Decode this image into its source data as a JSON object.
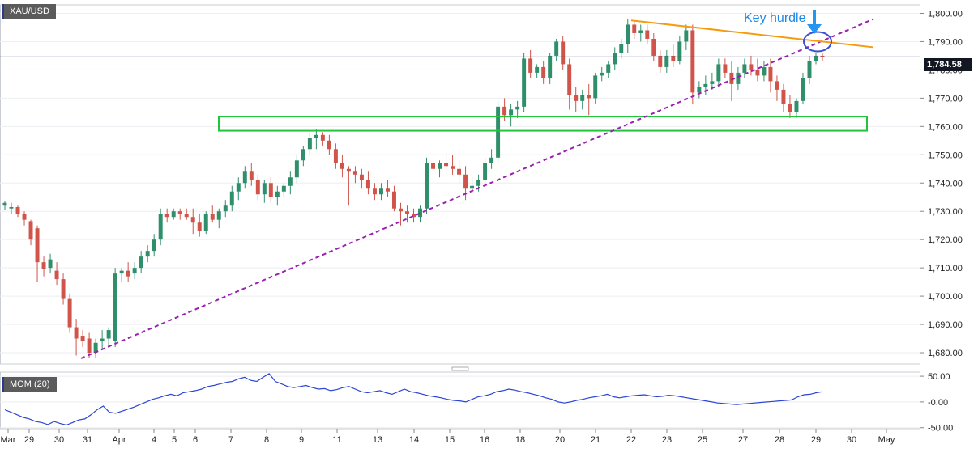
{
  "chart_data": [
    {
      "type": "candlestick",
      "symbol": "XAU/USD",
      "current_price": "1,784.58",
      "current_value": 1784.58,
      "ylim": [
        1676,
        1803
      ],
      "y_ticks": [
        1680,
        1690,
        1700,
        1710,
        1720,
        1730,
        1740,
        1750,
        1760,
        1770,
        1780,
        1790,
        1800
      ],
      "y_tick_labels": [
        "1,680.00",
        "1,690.00",
        "1,700.00",
        "1,710.00",
        "1,720.00",
        "1,730.00",
        "1,740.00",
        "1,750.00",
        "1,760.00",
        "1,770.00",
        "1,780.00",
        "1,790.00",
        "1,800.00"
      ],
      "x_tick_labels": [
        "Mar",
        "29",
        "30",
        "31",
        "Apr",
        "4",
        "5",
        "6",
        "7",
        "8",
        "9",
        "11",
        "13",
        "14",
        "15",
        "16",
        "18",
        "20",
        "21",
        "22",
        "23",
        "25",
        "27",
        "28",
        "29",
        "30",
        "May"
      ],
      "annotations": {
        "label": "Key  hurdle",
        "support_zone": [
          1758.5,
          1763.5
        ],
        "rising_trendline": [
          [
            0,
            1678
          ],
          [
            1.0,
            1798
          ]
        ],
        "falling_trendline": [
          [
            0,
            1797.5
          ],
          [
            1.0,
            1788
          ]
        ]
      },
      "ohlc": [
        [
          1732,
          1733.5,
          1730.5,
          1733
        ],
        [
          1731,
          1733,
          1729,
          1731.5
        ],
        [
          1731.5,
          1732,
          1728,
          1729
        ],
        [
          1729,
          1730,
          1725,
          1727
        ],
        [
          1726.5,
          1727,
          1718,
          1720
        ],
        [
          1724,
          1725,
          1705,
          1712
        ],
        [
          1712,
          1714,
          1707,
          1709.5
        ],
        [
          1710,
          1715,
          1708,
          1713
        ],
        [
          1709,
          1712,
          1704,
          1706
        ],
        [
          1706,
          1708,
          1697,
          1699
        ],
        [
          1699,
          1701,
          1687,
          1689
        ],
        [
          1689,
          1692,
          1679,
          1685
        ],
        [
          1686,
          1688,
          1682,
          1684
        ],
        [
          1685,
          1687,
          1678,
          1680
        ],
        [
          1680,
          1685,
          1678,
          1683.5
        ],
        [
          1684,
          1688,
          1681,
          1685
        ],
        [
          1685,
          1689,
          1682,
          1688
        ],
        [
          1684,
          1710,
          1682,
          1708
        ],
        [
          1708,
          1710,
          1705,
          1709
        ],
        [
          1709,
          1712,
          1705,
          1707
        ],
        [
          1708,
          1712,
          1706,
          1710
        ],
        [
          1710,
          1716,
          1708,
          1714
        ],
        [
          1714,
          1718,
          1712,
          1716
        ],
        [
          1716,
          1722,
          1714,
          1720
        ],
        [
          1720,
          1731,
          1718,
          1729
        ],
        [
          1729,
          1731,
          1726,
          1728
        ],
        [
          1728,
          1731,
          1727,
          1730
        ],
        [
          1730,
          1731,
          1727,
          1729
        ],
        [
          1729,
          1731,
          1727,
          1728
        ],
        [
          1728,
          1731,
          1722,
          1726
        ],
        [
          1726,
          1729,
          1721,
          1723
        ],
        [
          1723,
          1730,
          1722,
          1729
        ],
        [
          1729,
          1732,
          1726,
          1727
        ],
        [
          1727,
          1731,
          1724,
          1730
        ],
        [
          1730,
          1734,
          1728,
          1732
        ],
        [
          1732,
          1739,
          1730,
          1737
        ],
        [
          1737,
          1742,
          1734,
          1740
        ],
        [
          1740,
          1746,
          1738,
          1744
        ],
        [
          1744,
          1747,
          1739,
          1741
        ],
        [
          1741,
          1743,
          1734,
          1736
        ],
        [
          1736,
          1741,
          1733,
          1740
        ],
        [
          1740,
          1742,
          1733,
          1735
        ],
        [
          1735,
          1739,
          1732,
          1737
        ],
        [
          1737,
          1740,
          1735,
          1739
        ],
        [
          1739,
          1744,
          1736,
          1742
        ],
        [
          1742,
          1750,
          1740,
          1748
        ],
        [
          1748,
          1753,
          1746,
          1752
        ],
        [
          1752,
          1758,
          1750,
          1756
        ],
        [
          1756,
          1759,
          1752,
          1757
        ],
        [
          1757,
          1758,
          1753,
          1755
        ],
        [
          1755,
          1757,
          1750,
          1752
        ],
        [
          1752,
          1754,
          1745,
          1747
        ],
        [
          1747,
          1750,
          1742,
          1745
        ],
        [
          1745,
          1746,
          1732,
          1744
        ],
        [
          1744,
          1746,
          1740,
          1743
        ],
        [
          1743,
          1745,
          1738,
          1741
        ],
        [
          1741,
          1744,
          1736,
          1738
        ],
        [
          1738,
          1740,
          1734,
          1736
        ],
        [
          1736,
          1740,
          1734,
          1738
        ],
        [
          1738,
          1741,
          1735,
          1737
        ],
        [
          1737,
          1739,
          1730,
          1731
        ],
        [
          1731,
          1733,
          1725,
          1730
        ],
        [
          1730,
          1732,
          1726,
          1729
        ],
        [
          1729,
          1731,
          1726,
          1728
        ],
        [
          1728,
          1732,
          1726,
          1731
        ],
        [
          1731,
          1749,
          1729,
          1747
        ],
        [
          1747,
          1750,
          1743,
          1745
        ],
        [
          1745,
          1748,
          1742,
          1747
        ],
        [
          1747,
          1751,
          1744,
          1746
        ],
        [
          1746,
          1750,
          1743,
          1745
        ],
        [
          1745,
          1748,
          1740,
          1743
        ],
        [
          1743,
          1746,
          1734,
          1738
        ],
        [
          1738,
          1742,
          1736,
          1739
        ],
        [
          1739,
          1743,
          1737,
          1741
        ],
        [
          1741,
          1749,
          1739,
          1747
        ],
        [
          1747,
          1752,
          1745,
          1749
        ],
        [
          1749,
          1769,
          1747,
          1767
        ],
        [
          1767,
          1770,
          1762,
          1764
        ],
        [
          1764,
          1768,
          1760,
          1766
        ],
        [
          1766,
          1769,
          1763,
          1767
        ],
        [
          1767,
          1786,
          1765,
          1784
        ],
        [
          1784,
          1787,
          1777,
          1779
        ],
        [
          1779,
          1782,
          1777,
          1781
        ],
        [
          1781,
          1783,
          1775,
          1777
        ],
        [
          1777,
          1786,
          1775,
          1785
        ],
        [
          1785,
          1791,
          1783,
          1790
        ],
        [
          1790,
          1792,
          1780,
          1782
        ],
        [
          1782,
          1784,
          1766,
          1771
        ],
        [
          1771,
          1774,
          1765,
          1769
        ],
        [
          1769,
          1773,
          1766,
          1771
        ],
        [
          1771,
          1775,
          1764,
          1770
        ],
        [
          1770,
          1779,
          1768,
          1778
        ],
        [
          1778,
          1781,
          1776,
          1779
        ],
        [
          1779,
          1783,
          1777,
          1782
        ],
        [
          1782,
          1788,
          1780,
          1786
        ],
        [
          1786,
          1791,
          1784,
          1789
        ],
        [
          1789,
          1798,
          1786,
          1796
        ],
        [
          1796,
          1797,
          1791,
          1793
        ],
        [
          1793,
          1796,
          1790,
          1794
        ],
        [
          1794,
          1796,
          1789,
          1791
        ],
        [
          1791,
          1793,
          1783,
          1785
        ],
        [
          1785,
          1787,
          1779,
          1781
        ],
        [
          1781,
          1787,
          1779,
          1785
        ],
        [
          1785,
          1789,
          1781,
          1783
        ],
        [
          1783,
          1792,
          1782,
          1790
        ],
        [
          1790,
          1796,
          1787,
          1794
        ],
        [
          1794,
          1796,
          1768,
          1772
        ],
        [
          1772,
          1776,
          1770,
          1774
        ],
        [
          1774,
          1778,
          1771,
          1775
        ],
        [
          1775,
          1779,
          1773,
          1776
        ],
        [
          1776,
          1784,
          1774,
          1782
        ],
        [
          1782,
          1784,
          1777,
          1779
        ],
        [
          1779,
          1783,
          1769,
          1775
        ],
        [
          1775,
          1781,
          1773,
          1779
        ],
        [
          1779,
          1784,
          1777,
          1782
        ],
        [
          1782,
          1785,
          1778,
          1780
        ],
        [
          1780,
          1784,
          1776,
          1778
        ],
        [
          1778,
          1783,
          1776,
          1781
        ],
        [
          1781,
          1784,
          1772,
          1776
        ],
        [
          1776,
          1778,
          1769,
          1773
        ],
        [
          1773,
          1775,
          1765,
          1768
        ],
        [
          1768,
          1771,
          1763,
          1765
        ],
        [
          1765,
          1770,
          1763,
          1769
        ],
        [
          1769,
          1779,
          1768,
          1777
        ],
        [
          1777,
          1785,
          1775,
          1783
        ],
        [
          1783,
          1786,
          1782,
          1785
        ],
        [
          1785,
          1786,
          1783,
          1784.6
        ]
      ]
    },
    {
      "type": "line",
      "indicator": "MOM (20)",
      "ylim": [
        -52,
        58
      ],
      "y_ticks": [
        -50,
        0,
        50
      ],
      "y_tick_labels": [
        "-50.00",
        "-0.00",
        "50.00"
      ],
      "values": [
        -15,
        -20,
        -25,
        -30,
        -33,
        -38,
        -40,
        -44,
        -38,
        -42,
        -45,
        -40,
        -35,
        -33,
        -25,
        -15,
        -8,
        -20,
        -22,
        -18,
        -14,
        -10,
        -5,
        0,
        5,
        8,
        12,
        15,
        12,
        18,
        20,
        22,
        25,
        30,
        32,
        35,
        38,
        40,
        45,
        48,
        42,
        40,
        48,
        55,
        40,
        35,
        30,
        28,
        30,
        32,
        28,
        25,
        26,
        22,
        24,
        28,
        30,
        25,
        20,
        18,
        20,
        22,
        18,
        15,
        20,
        25,
        20,
        18,
        15,
        12,
        10,
        8,
        5,
        3,
        2,
        0,
        5,
        10,
        12,
        15,
        20,
        22,
        25,
        23,
        20,
        18,
        15,
        12,
        8,
        5,
        0,
        -2,
        0,
        3,
        5,
        8,
        10,
        12,
        15,
        10,
        8,
        10,
        12,
        13,
        14,
        12,
        10,
        11,
        13,
        12,
        10,
        8,
        6,
        4,
        2,
        0,
        -2,
        -3,
        -4,
        -5,
        -4,
        -3,
        -2,
        -1,
        0,
        1,
        2,
        3,
        4,
        10,
        14,
        15,
        18,
        20
      ]
    }
  ]
}
